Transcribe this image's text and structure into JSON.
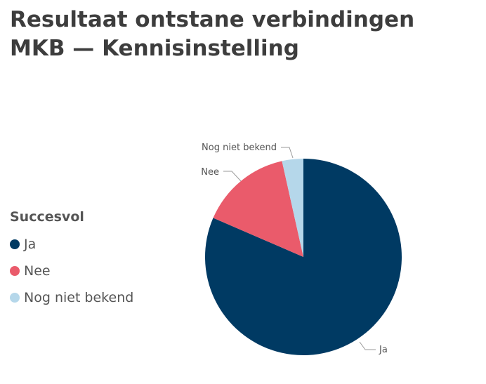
{
  "chart_data": {
    "type": "pie",
    "title_lines": [
      "Resultaat ontstane verbindingen",
      "MKB — Kennisinstelling"
    ],
    "legend": {
      "title": "Succesvol",
      "position": "left"
    },
    "slices": [
      {
        "label": "Ja",
        "value": 81.5,
        "color": "#003a63"
      },
      {
        "label": "Nee",
        "value": 15.0,
        "color": "#ea5b6b"
      },
      {
        "label": "Nog niet bekend",
        "value": 3.5,
        "color": "#b5d7ea"
      }
    ]
  }
}
